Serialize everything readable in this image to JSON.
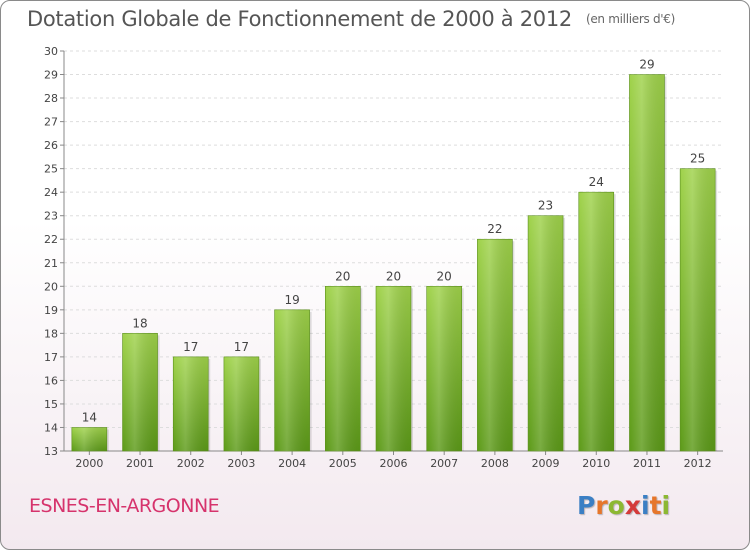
{
  "title": "Dotation Globale de Fonctionnement de 2000 à 2012",
  "subtitle": "(en milliers d'€)",
  "commune": "ESNES-EN-ARGONNE",
  "logo": {
    "letters": [
      "P",
      "r",
      "o",
      "x",
      "i",
      "t",
      "i"
    ],
    "colors": [
      "#3b7fc4",
      "#e6762b",
      "#8cb832",
      "#d43a3a",
      "#3b7fc4",
      "#e6762b",
      "#8cb832"
    ]
  },
  "colors": {
    "bar_top": "#9fd24a",
    "bar_bottom": "#5c9a18",
    "commune": "#d6336c"
  },
  "chart_data": {
    "type": "bar",
    "title": "Dotation Globale de Fonctionnement de 2000 à 2012",
    "subtitle": "(en milliers d'€)",
    "categories": [
      "2000",
      "2001",
      "2002",
      "2003",
      "2004",
      "2005",
      "2006",
      "2007",
      "2008",
      "2009",
      "2010",
      "2011",
      "2012"
    ],
    "values": [
      14,
      18,
      17,
      17,
      19,
      20,
      20,
      20,
      22,
      23,
      24,
      29,
      25
    ],
    "ylim": [
      13,
      30
    ],
    "yticks": [
      13,
      14,
      15,
      16,
      17,
      18,
      19,
      20,
      21,
      22,
      23,
      24,
      25,
      26,
      27,
      28,
      29,
      30
    ],
    "grid": true,
    "xlabel": "",
    "ylabel": ""
  }
}
